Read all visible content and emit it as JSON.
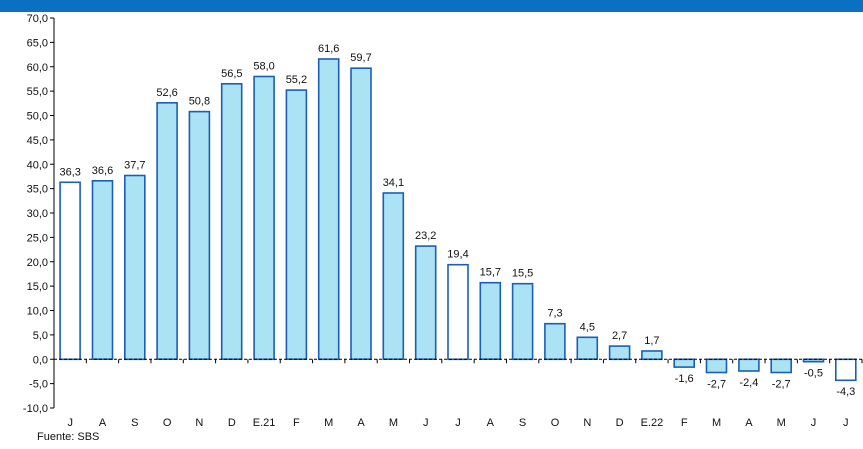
{
  "header_bar_color": "#0b6fc2",
  "source": "Fuente: SBS",
  "chart_data": {
    "type": "bar",
    "categories": [
      "J",
      "A",
      "S",
      "O",
      "N",
      "D",
      "E.21",
      "F",
      "M",
      "A",
      "M",
      "J",
      "J",
      "A",
      "S",
      "O",
      "N",
      "D",
      "E.22",
      "F",
      "M",
      "A",
      "M",
      "J",
      "J"
    ],
    "values": [
      36.3,
      36.6,
      37.7,
      52.6,
      50.8,
      56.5,
      58.0,
      55.2,
      61.6,
      59.7,
      34.1,
      23.2,
      19.4,
      15.7,
      15.5,
      7.3,
      4.5,
      2.7,
      1.7,
      -1.6,
      -2.7,
      -2.4,
      -2.7,
      -0.5,
      -4.3
    ],
    "value_labels": [
      "36,3",
      "36,6",
      "37,7",
      "52,6",
      "50,8",
      "56,5",
      "58,0",
      "55,2",
      "61,6",
      "59,7",
      "34,1",
      "23,2",
      "19,4",
      "15,7",
      "15,5",
      "7,3",
      "4,5",
      "2,7",
      "1,7",
      "-1,6",
      "-2,7",
      "-2,4",
      "-2,7",
      "-0,5",
      "-4,3"
    ],
    "hollow": [
      true,
      false,
      false,
      false,
      false,
      false,
      false,
      false,
      false,
      false,
      false,
      false,
      true,
      false,
      false,
      false,
      false,
      false,
      false,
      false,
      false,
      false,
      false,
      false,
      true
    ],
    "ylim": [
      -10,
      70
    ],
    "yticks": [
      "-10,0",
      "-5,0",
      "0,0",
      "5,0",
      "10,0",
      "15,0",
      "20,0",
      "25,0",
      "30,0",
      "35,0",
      "40,0",
      "45,0",
      "50,0",
      "55,0",
      "60,0",
      "65,0",
      "70,0"
    ],
    "fill_color": "#abe3f5",
    "stroke_color": "#1a5fb4",
    "grid": false
  }
}
